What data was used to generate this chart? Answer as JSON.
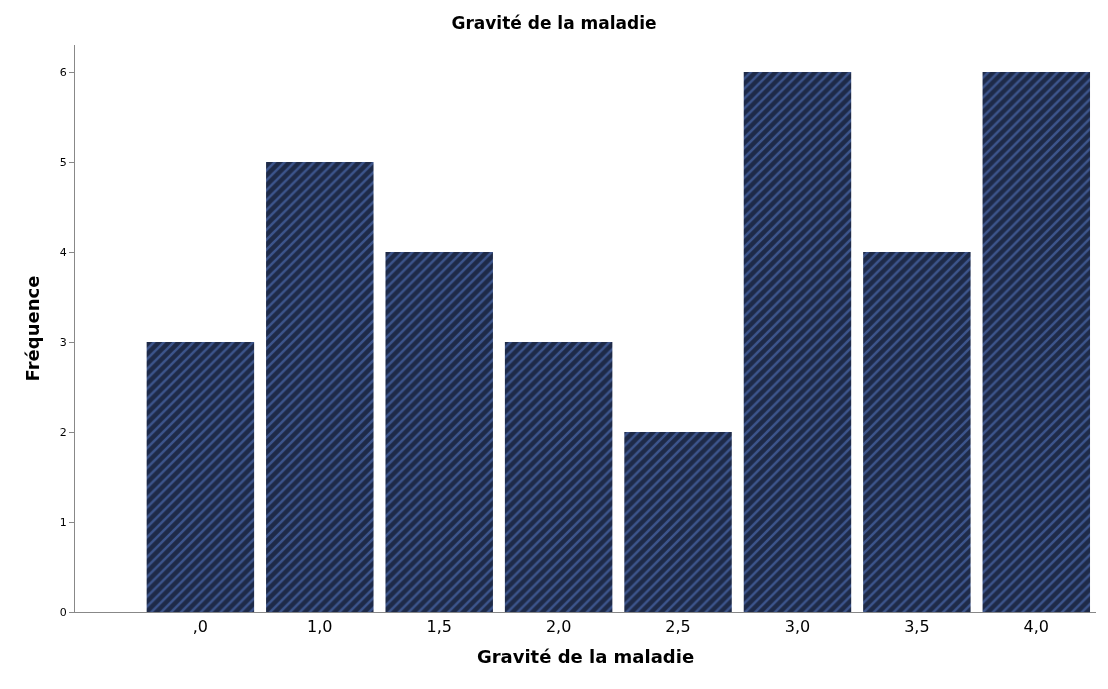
{
  "chart_data": {
    "type": "bar",
    "title": "Gravité de la maladie",
    "xlabel": "Gravité de la maladie",
    "ylabel": "Fréquence",
    "categories": [
      ",0",
      "1,0",
      "1,5",
      "2,0",
      "2,5",
      "3,0",
      "3,5",
      "4,0"
    ],
    "values": [
      3,
      5,
      4,
      3,
      2,
      6,
      4,
      6
    ],
    "color": "#1e2a48",
    "ylim": [
      0,
      6.3
    ],
    "yticks": [
      0,
      1,
      2,
      3,
      4,
      5,
      6
    ]
  }
}
